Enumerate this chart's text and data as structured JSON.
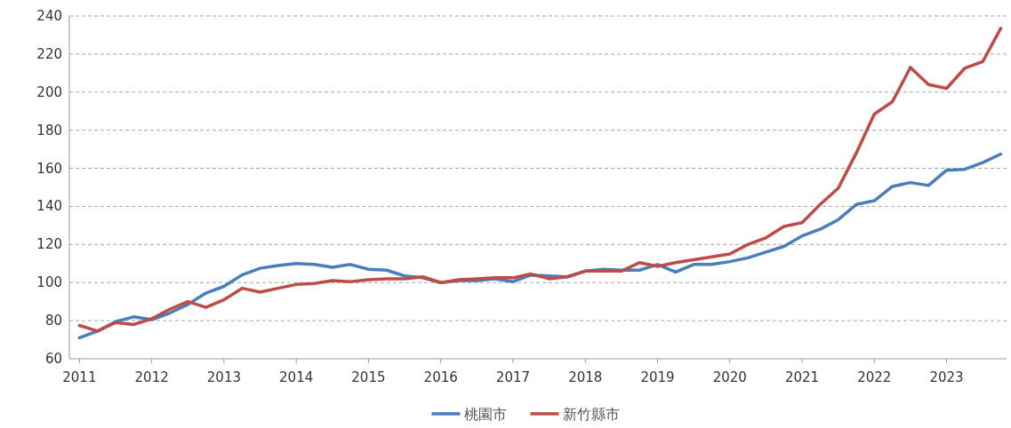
{
  "chart_data": {
    "type": "line",
    "x": [
      2011,
      2011.25,
      2011.5,
      2011.75,
      2012,
      2012.25,
      2012.5,
      2012.75,
      2013,
      2013.25,
      2013.5,
      2013.75,
      2014,
      2014.25,
      2014.5,
      2014.75,
      2015,
      2015.25,
      2015.5,
      2015.75,
      2016,
      2016.25,
      2016.5,
      2016.75,
      2017,
      2017.25,
      2017.5,
      2017.75,
      2018,
      2018.25,
      2018.5,
      2018.75,
      2019,
      2019.25,
      2019.5,
      2019.75,
      2020,
      2020.25,
      2020.5,
      2020.75,
      2021,
      2021.25,
      2021.5,
      2021.75,
      2022,
      2022.25,
      2022.5,
      2022.75,
      2023,
      2023.25,
      2023.5,
      2023.75
    ],
    "series": [
      {
        "name": "桃園市",
        "color": "#4a7ebb",
        "values": [
          71,
          74.5,
          79.5,
          82,
          80.5,
          84,
          88.5,
          94.5,
          98,
          104,
          107.5,
          109,
          110,
          109.5,
          108,
          109.5,
          107,
          106.5,
          103.5,
          102.5,
          100,
          101,
          101,
          102,
          100.5,
          104,
          103.5,
          103,
          106,
          107,
          106.5,
          106.5,
          109.5,
          105.5,
          109.5,
          109.5,
          111,
          113,
          116,
          119,
          124.5,
          128,
          133,
          141,
          143,
          150.5,
          152.5,
          151,
          159,
          159.5,
          163,
          167.5
        ]
      },
      {
        "name": "新竹縣市",
        "color": "#be4b48",
        "values": [
          77.5,
          74.5,
          79,
          78,
          81,
          86,
          90,
          87,
          91,
          97,
          95,
          97,
          99,
          99.5,
          101,
          100.5,
          101.5,
          102,
          102,
          103,
          100,
          101.5,
          102,
          102.5,
          102.5,
          104.5,
          102,
          103,
          106,
          106,
          106,
          110.5,
          108.5,
          110.5,
          112,
          113.5,
          115,
          120,
          123.5,
          129.5,
          131.5,
          141,
          149.5,
          168,
          188.5,
          195,
          213,
          204,
          202,
          212.5,
          216,
          233.5
        ]
      }
    ],
    "xlim": [
      2010.86,
      2023.83
    ],
    "ylim": [
      60,
      240
    ],
    "xticks": [
      2011,
      2012,
      2013,
      2014,
      2015,
      2016,
      2017,
      2018,
      2019,
      2020,
      2021,
      2022,
      2023
    ],
    "yticks": [
      60,
      80,
      100,
      120,
      140,
      160,
      180,
      200,
      220,
      240
    ],
    "grid": "y",
    "legend": "bottom"
  }
}
